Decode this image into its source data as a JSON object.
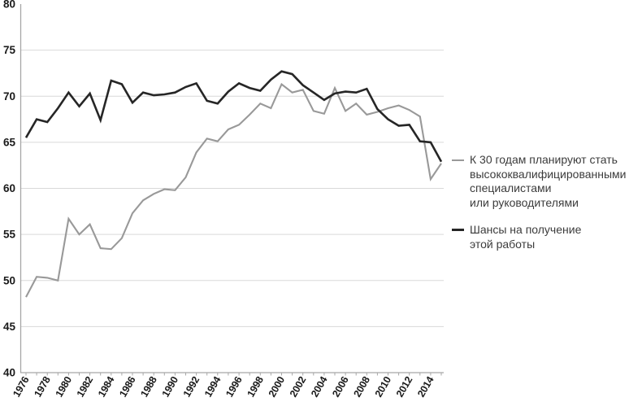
{
  "chart_data": {
    "type": "line",
    "title": "",
    "xlabel": "",
    "ylabel": "",
    "x": [
      1976,
      1977,
      1978,
      1979,
      1980,
      1981,
      1982,
      1983,
      1984,
      1985,
      1986,
      1987,
      1988,
      1989,
      1990,
      1991,
      1992,
      1993,
      1994,
      1995,
      1996,
      1997,
      1998,
      1999,
      2000,
      2001,
      2002,
      2003,
      2004,
      2005,
      2006,
      2007,
      2008,
      2009,
      2010,
      2011,
      2012,
      2013,
      2014,
      2015
    ],
    "series": [
      {
        "name": "К 30 годам планируют стать высококвалифицированными специалистами или руководителями",
        "color": "#999999",
        "width": 2.1,
        "values": [
          48.2,
          50.4,
          50.3,
          50.0,
          56.7,
          55.0,
          56.1,
          53.5,
          53.4,
          54.6,
          57.3,
          58.7,
          59.4,
          59.9,
          59.8,
          61.2,
          63.9,
          65.4,
          65.1,
          66.4,
          66.9,
          68.0,
          69.2,
          68.7,
          71.3,
          70.4,
          70.7,
          68.4,
          68.1,
          70.9,
          68.4,
          69.2,
          68.0,
          68.3,
          68.7,
          69.0,
          68.5,
          67.8,
          61.0,
          62.7
        ]
      },
      {
        "name": "Шансы на получение этой работы",
        "color": "#262626",
        "width": 2.6,
        "values": [
          65.5,
          67.5,
          67.2,
          68.7,
          70.4,
          68.9,
          70.3,
          67.4,
          71.7,
          71.3,
          69.3,
          70.4,
          70.1,
          70.2,
          70.4,
          71.0,
          71.4,
          69.5,
          69.2,
          70.5,
          71.4,
          70.9,
          70.6,
          71.8,
          72.7,
          72.4,
          71.2,
          70.4,
          69.6,
          70.3,
          70.5,
          70.4,
          70.8,
          68.6,
          67.5,
          66.8,
          66.9,
          65.1,
          65.0,
          62.9
        ]
      }
    ],
    "ylim": [
      40,
      80
    ],
    "y_ticks": [
      40,
      45,
      50,
      55,
      60,
      65,
      70,
      75,
      80
    ],
    "x_tick_labels": [
      1976,
      1978,
      1980,
      1982,
      1984,
      1986,
      1988,
      1990,
      1992,
      1994,
      1996,
      1998,
      2000,
      2002,
      2004,
      2006,
      2008,
      2010,
      2012,
      2014
    ],
    "x_tick_label_rotation": -60,
    "grid": "horizontal",
    "legend_position": "right-middle"
  },
  "legend": {
    "items": [
      {
        "label_lines": [
          "К 30 годам планируют стать",
          "высококвалифицированными",
          "специалистами",
          "или руководителями"
        ],
        "color": "#999999"
      },
      {
        "label_lines": [
          "Шансы на получение",
          "этой работы"
        ],
        "color": "#262626"
      }
    ]
  },
  "colors": {
    "grid": "#d9d9d9",
    "axis": "#a6a6a6",
    "tick_label": "#1a1a1a",
    "series_plan": "#999999",
    "series_chance": "#262626",
    "legend_text": "#3c3c3c",
    "background": "#ffffff"
  }
}
